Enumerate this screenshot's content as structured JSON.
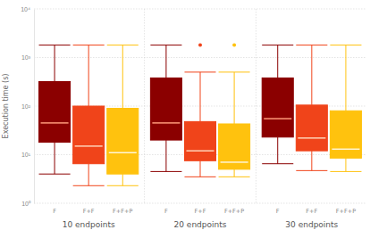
{
  "chart_data": {
    "type": "box",
    "y_label": "Execution time (s)",
    "categories": [
      "10 endpoints",
      "20 endpoints",
      "30 endpoints"
    ],
    "log": "y",
    "grid": true,
    "ylim": [
      1,
      10000
    ],
    "yticks": [
      {
        "value": 1,
        "label": "10⁰"
      },
      {
        "value": 10,
        "label": "10¹"
      },
      {
        "value": 100,
        "label": "10²"
      },
      {
        "value": 1000,
        "label": "10³"
      },
      {
        "value": 10000,
        "label": "10⁴"
      }
    ],
    "series": [
      {
        "name": "F",
        "color": "#8b0000",
        "low": [
          4,
          4.5,
          6.5
        ],
        "q1": [
          18,
          20,
          23
        ],
        "median": [
          45,
          45,
          55
        ],
        "q3": [
          320,
          380,
          380
        ],
        "high": [
          1800,
          1800,
          1800
        ],
        "outliers": [
          [],
          [],
          []
        ]
      },
      {
        "name": "F+F",
        "color": "#f0441a",
        "low": [
          2.3,
          3.5,
          4.7
        ],
        "q1": [
          6.5,
          7.5,
          12
        ],
        "median": [
          15,
          12,
          22
        ],
        "q3": [
          100,
          48,
          105
        ],
        "high": [
          1800,
          500,
          1800
        ],
        "outliers": [
          [],
          [
            1800
          ],
          []
        ]
      },
      {
        "name": "F+F+P",
        "color": "#ffc20e",
        "low": [
          2.3,
          3.5,
          4.5
        ],
        "q1": [
          4,
          5,
          8.5
        ],
        "median": [
          11,
          7,
          13
        ],
        "q3": [
          90,
          43,
          80
        ],
        "high": [
          1800,
          500,
          1800
        ],
        "outliers": [
          [],
          [
            1800
          ],
          []
        ]
      }
    ]
  }
}
